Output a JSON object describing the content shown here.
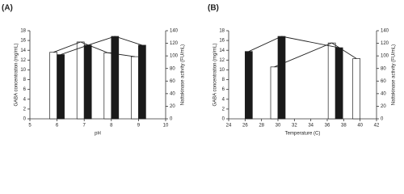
{
  "chart_data": [
    {
      "type": "bar",
      "panel_label": "(A)",
      "x_label": "pH",
      "y_label": "GABA concentration (mg/mL)",
      "y2_label": "Nattokinase activity (FU/mL)",
      "x": [
        6,
        7,
        8,
        9
      ],
      "series": [
        {
          "color": "#ffffff",
          "values": [
            13.6,
            15.7,
            13.5,
            12.7
          ]
        },
        {
          "color": "#1a1a1a",
          "values": [
            102,
            117,
            131,
            117
          ],
          "axis": "y2"
        }
      ],
      "xlim": [
        5,
        10
      ],
      "xticks": [
        5,
        6,
        7,
        8,
        9,
        10
      ],
      "ylim": [
        0,
        18
      ],
      "yticks": [
        0,
        2,
        4,
        6,
        8,
        10,
        12,
        14,
        16,
        18
      ],
      "y2lim": [
        0,
        140
      ],
      "y2ticks": [
        0,
        20,
        40,
        60,
        80,
        100,
        120,
        140
      ]
    },
    {
      "type": "bar",
      "panel_label": "(B)",
      "x_label": "Temperature (C)",
      "y_label": "GABA concentration (mg/mL)",
      "y2_label": "Nattokinase activity (FU/mL)",
      "x": [
        26,
        30,
        37,
        40
      ],
      "series": [
        {
          "color": "#ffffff",
          "values": [
            null,
            10.6,
            15.5,
            12.3
          ]
        },
        {
          "color": "#1a1a1a",
          "values": [
            107,
            131,
            113,
            null
          ],
          "axis": "y2"
        }
      ],
      "xlim": [
        24,
        42
      ],
      "xticks": [
        24,
        26,
        28,
        30,
        32,
        34,
        36,
        38,
        40,
        42
      ],
      "ylim": [
        0,
        18
      ],
      "yticks": [
        0,
        2,
        4,
        6,
        8,
        10,
        12,
        14,
        16,
        18
      ],
      "y2lim": [
        0,
        140
      ],
      "y2ticks": [
        0,
        20,
        40,
        60,
        80,
        100,
        120,
        140
      ]
    }
  ]
}
